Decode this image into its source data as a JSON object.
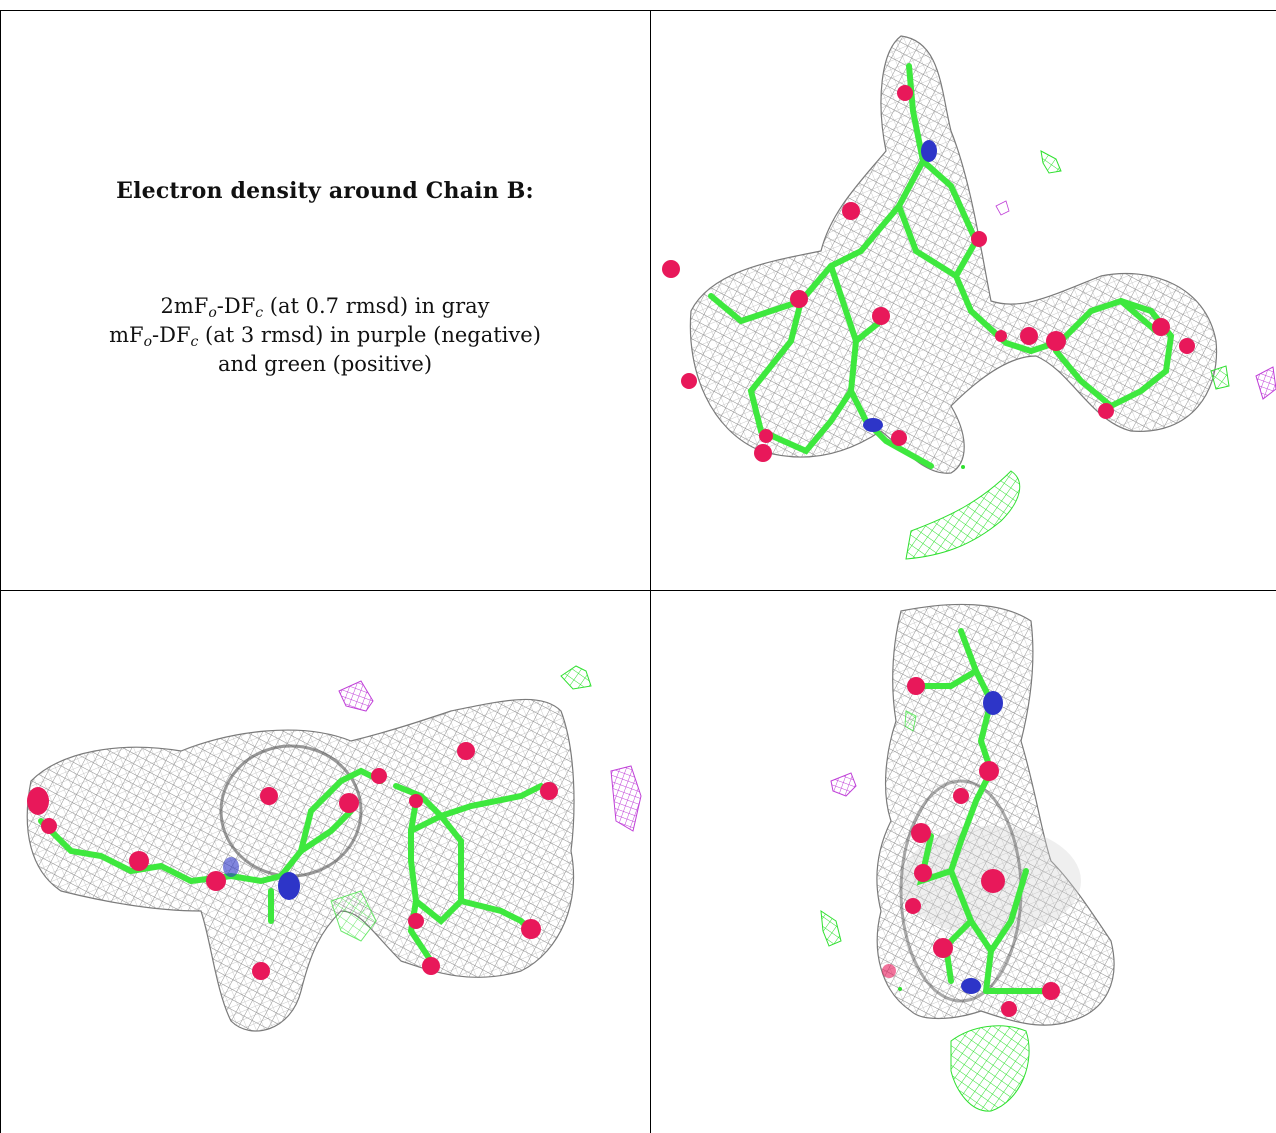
{
  "caption": {
    "title": "Electron density around Chain B:",
    "line1": {
      "prefix": "2mF",
      "sub1": "o",
      "mid": "-DF",
      "sub2": "c",
      "suffix": " (at 0.7 rmsd) in gray"
    },
    "line2": {
      "prefix": "mF",
      "sub1": "o",
      "mid": "-DF",
      "sub2": "c",
      "suffix": " (at 3 rmsd) in purple (negative)"
    },
    "line3": "and green (positive)"
  },
  "colors": {
    "density_2fo": "#8a8a8a",
    "density_negative": "#c040d8",
    "density_positive": "#2fe02f",
    "carbon": "#3ee83e",
    "oxygen": "#e8185a",
    "nitrogen": "#2d35c8",
    "border": "#000000"
  },
  "panels": [
    {
      "id": "top-right",
      "view": "front"
    },
    {
      "id": "bottom-left",
      "view": "side"
    },
    {
      "id": "bottom-right",
      "view": "end-on"
    }
  ]
}
